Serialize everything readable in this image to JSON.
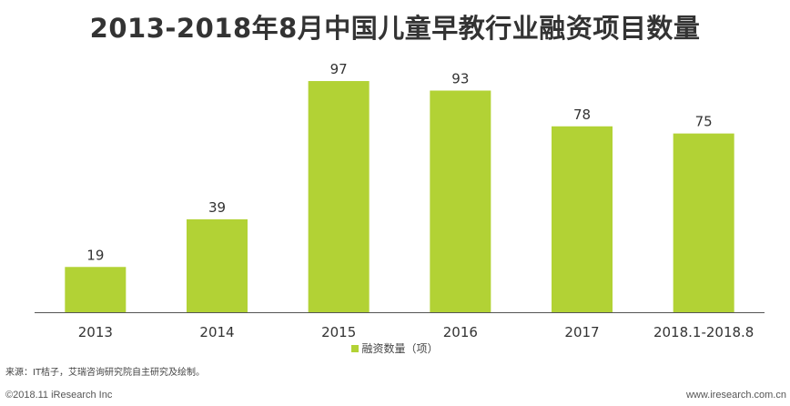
{
  "chart_data": {
    "type": "bar",
    "title": "2013-2018年8月中国儿童早教行业融资项目数量",
    "categories": [
      "2013",
      "2014",
      "2015",
      "2016",
      "2017",
      "2018.1-2018.8"
    ],
    "series": [
      {
        "name": "融资数量（项）",
        "values": [
          19,
          39,
          97,
          93,
          78,
          75
        ]
      }
    ],
    "xlabel": "",
    "ylabel": "",
    "ylim": [
      0,
      110
    ],
    "grid": false,
    "legend_position": "bottom",
    "bar_color": "#b2d235",
    "data_labels": true
  },
  "source": "来源：IT桔子，艾瑞咨询研究院自主研究及绘制。",
  "footer": {
    "copyright": "©2018.11 iResearch Inc",
    "website": "www.iresearch.com.cn"
  }
}
